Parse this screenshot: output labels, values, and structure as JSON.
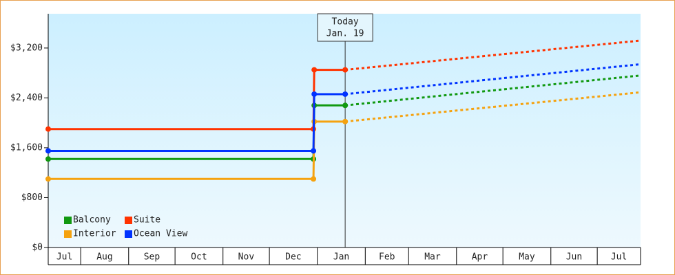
{
  "chart_data": {
    "type": "line",
    "x": [
      0,
      171.5,
      172,
      192,
      383
    ],
    "xlim": [
      0,
      383
    ],
    "xticks": [
      0,
      21,
      52,
      82,
      113,
      143,
      174,
      205,
      233,
      264,
      294,
      325,
      355,
      383
    ],
    "categories": [
      "Jul",
      "Aug",
      "Sep",
      "Oct",
      "Nov",
      "Dec",
      "Jan",
      "Feb",
      "Mar",
      "Apr",
      "May",
      "Jun",
      "Jul"
    ],
    "ylim": [
      0,
      3750
    ],
    "yticks": [
      {
        "value": 0,
        "label": "$0"
      },
      {
        "value": 800,
        "label": "$800"
      },
      {
        "value": 1600,
        "label": "$1,600"
      },
      {
        "value": 2400,
        "label": "$2,400"
      },
      {
        "value": 3200,
        "label": "$3,200"
      }
    ],
    "today": {
      "x": 192,
      "label": [
        "Today",
        "Jan. 19"
      ]
    },
    "legend": "lower left",
    "series": [
      {
        "name": "Balcony",
        "color": "#119911",
        "values": [
          1420,
          1420,
          2280,
          2280,
          2760
        ]
      },
      {
        "name": "Suite",
        "color": "#ff3300",
        "values": [
          1900,
          1900,
          2850,
          2850,
          3320
        ]
      },
      {
        "name": "Interior",
        "color": "#f5a20f",
        "values": [
          1100,
          1100,
          2020,
          2020,
          2490
        ]
      },
      {
        "name": "Ocean View",
        "color": "#0033ff",
        "values": [
          1550,
          1550,
          2460,
          2460,
          2940
        ]
      }
    ]
  }
}
